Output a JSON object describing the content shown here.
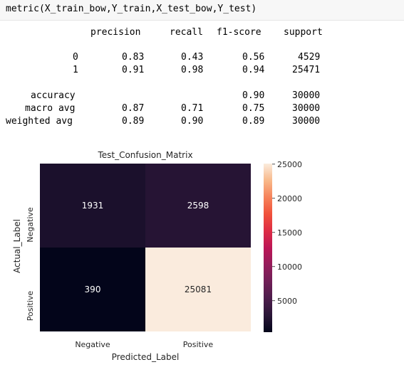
{
  "code_cell": {
    "source": "metric(X_train_bow,Y_train,X_test_bow,Y_test)"
  },
  "report": {
    "columns": [
      "precision",
      "recall",
      "f1-score",
      "support"
    ],
    "rows": [
      {
        "label": "0",
        "precision": "0.83",
        "recall": "0.43",
        "f1": "0.56",
        "support": "4529"
      },
      {
        "label": "1",
        "precision": "0.91",
        "recall": "0.98",
        "f1": "0.94",
        "support": "25471"
      },
      {
        "label": "accuracy",
        "precision": "",
        "recall": "",
        "f1": "0.90",
        "support": "30000"
      },
      {
        "label": "macro avg",
        "precision": "0.87",
        "recall": "0.71",
        "f1": "0.75",
        "support": "30000"
      },
      {
        "label": "weighted avg",
        "precision": "0.89",
        "recall": "0.90",
        "f1": "0.89",
        "support": "30000"
      }
    ]
  },
  "chart_data": {
    "type": "heatmap",
    "title": "Test_Confusion_Matrix",
    "xlabel": "Predicted_Label",
    "ylabel": "Actual_Label",
    "x_categories": [
      "Negative",
      "Positive"
    ],
    "y_categories": [
      "Negative",
      "Positive"
    ],
    "values": [
      [
        1931,
        2598
      ],
      [
        390,
        25081
      ]
    ],
    "colorbar": {
      "min": 390,
      "max": 25081,
      "ticks": [
        5000,
        10000,
        15000,
        20000,
        25000
      ],
      "colormap": "rocket"
    }
  }
}
